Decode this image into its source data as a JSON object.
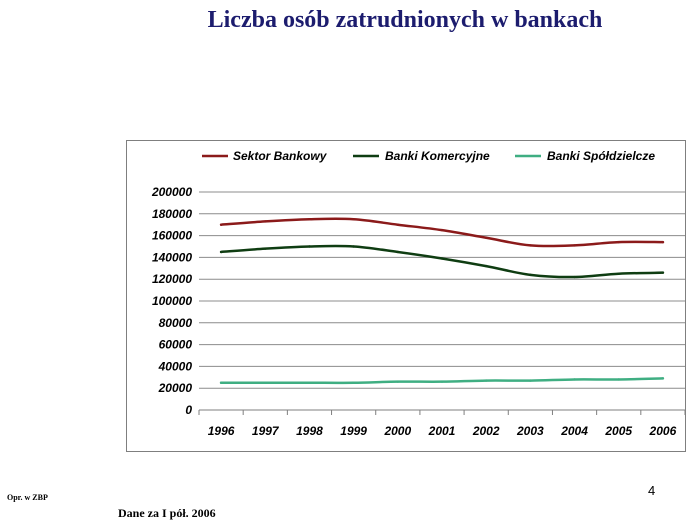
{
  "slide": {
    "title": "Liczba osób zatrudnionych w bankach",
    "page_number": "4",
    "source_note": "Opr. w ZBP",
    "data_note": "Dane za I pół. 2006"
  },
  "chart_data": {
    "type": "line",
    "title": "",
    "xlabel": "",
    "ylabel": "",
    "x": [
      "1996",
      "1997",
      "1998",
      "1999",
      "2000",
      "2001",
      "2002",
      "2003",
      "2004",
      "2005",
      "2006"
    ],
    "ylim": [
      0,
      200000
    ],
    "yticks": [
      0,
      20000,
      40000,
      60000,
      80000,
      100000,
      120000,
      140000,
      160000,
      180000,
      200000
    ],
    "grid": true,
    "legend_position": "top",
    "series": [
      {
        "name": "Sektor Bankowy",
        "color": "#8b1a1a",
        "values": [
          170000,
          173000,
          175000,
          175000,
          170000,
          165000,
          158000,
          151000,
          151000,
          154000,
          154000
        ]
      },
      {
        "name": "Banki Komercyjne",
        "color": "#0f3d12",
        "values": [
          145000,
          148000,
          150000,
          150000,
          145000,
          139000,
          132000,
          124000,
          122000,
          125000,
          126000
        ]
      },
      {
        "name": "Banki Spółdzielcze",
        "color": "#3fae82",
        "values": [
          25000,
          25000,
          25000,
          25000,
          26000,
          26000,
          27000,
          27000,
          28000,
          28000,
          29000
        ]
      }
    ]
  }
}
